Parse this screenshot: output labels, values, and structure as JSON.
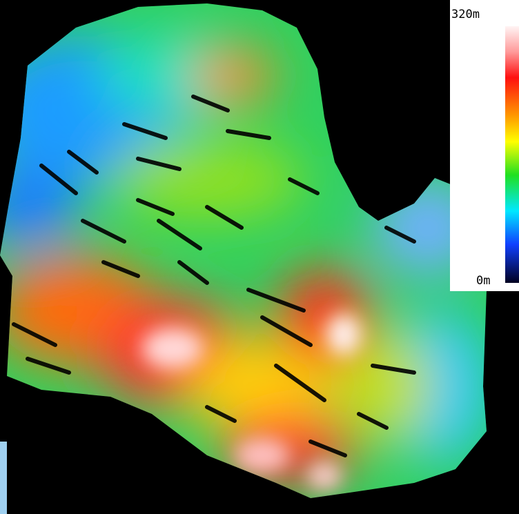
{
  "legend": {
    "max_label": "320m",
    "min_label": "0m"
  }
}
